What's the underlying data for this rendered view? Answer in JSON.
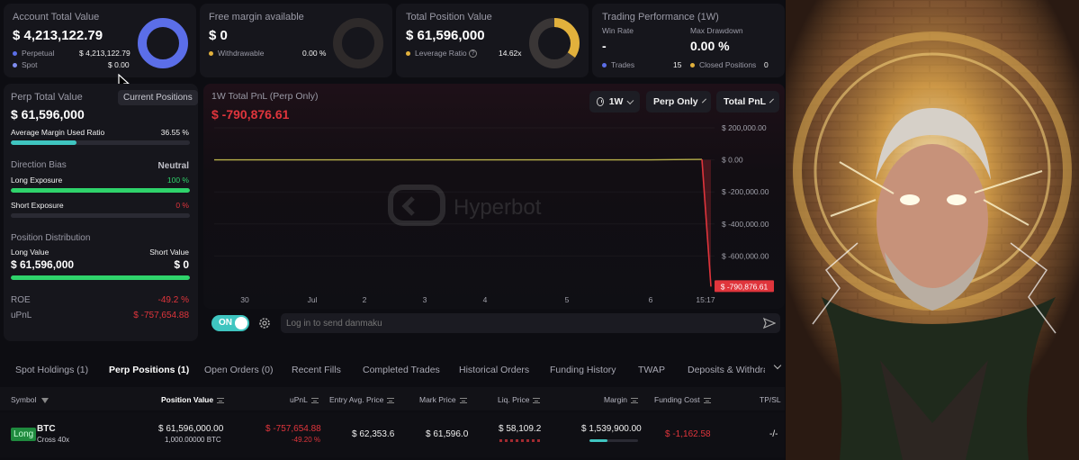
{
  "summary": {
    "account": {
      "title": "Account Total Value",
      "value": "$ 4,213,122.79",
      "rows": [
        {
          "label": "Perpetual",
          "value": "$ 4,213,122.79",
          "color": "#5b6ee8"
        },
        {
          "label": "Spot",
          "value": "$ 0.00",
          "color": "#7f8df0"
        }
      ]
    },
    "free_margin": {
      "title": "Free margin available",
      "value": "$ 0",
      "row_label": "Withdrawable",
      "row_value": "0.00 %"
    },
    "position": {
      "title": "Total Position Value",
      "value": "$ 61,596,000",
      "row_label": "Leverage Ratio",
      "row_value": "14.62x"
    },
    "performance": {
      "title": "Trading Performance (1W)",
      "win_rate_label": "Win Rate",
      "win_rate_value": "-",
      "max_drawdown_label": "Max Drawdown",
      "max_drawdown_value": "0.00 %",
      "trades_label": "Trades",
      "trades_value": "15",
      "closed_label": "Closed Positions",
      "closed_value": "0"
    }
  },
  "perp": {
    "title": "Perp Total Value",
    "current_positions": "Current Positions",
    "value": "$ 61,596,000",
    "margin_label": "Average Margin Used Ratio",
    "margin_value": "36.55 %",
    "margin_fraction": 0.3655,
    "direction_label": "Direction Bias",
    "direction_value": "Neutral",
    "long_label": "Long Exposure",
    "long_value": "100 %",
    "long_fraction": 1.0,
    "short_label": "Short Exposure",
    "short_value": "0 %",
    "short_fraction": 0.0,
    "distribution_label": "Position Distribution",
    "long_value_label": "Long Value",
    "short_value_label": "Short Value",
    "long_amount": "$ 61,596,000",
    "short_amount": "$ 0",
    "roe_label": "ROE",
    "roe_value": "-49.2 %",
    "upnl_label": "uPnL",
    "upnl_value": "$ -757,654.88"
  },
  "pnl_chart": {
    "title": "1W Total PnL (Perp Only)",
    "value": "$ -790,876.61",
    "filters": [
      "1W",
      "Perp Only",
      "Total PnL"
    ],
    "watermark": "Hyperbot",
    "chart_data": {
      "type": "line",
      "x_ticks": [
        "30",
        "Jul",
        "2",
        "3",
        "4",
        "5",
        "6",
        "15:17"
      ],
      "y_ticks": [
        "$ 200,000.00",
        "$ 0.00",
        "$ -200,000.00",
        "$ -400,000.00",
        "$ -600,000.00"
      ],
      "ylim": [
        -800000,
        200000
      ],
      "points": [
        {
          "x": "30",
          "y": 0
        },
        {
          "x": "Jul",
          "y": 0
        },
        {
          "x": "2",
          "y": 0
        },
        {
          "x": "3",
          "y": 0
        },
        {
          "x": "4",
          "y": 0
        },
        {
          "x": "5",
          "y": 0
        },
        {
          "x": "6",
          "y": 0
        },
        {
          "x": "15:17",
          "y": 3000
        },
        {
          "x": "15:17",
          "y": -790876.61
        }
      ],
      "last_value_label": "$ -790,876.61"
    }
  },
  "danmaku": {
    "toggle_label": "ON",
    "placeholder": "Log in to send danmaku"
  },
  "tabs": [
    "Spot Holdings (1)",
    "Perp Positions (1)",
    "Open Orders (0)",
    "Recent Fills",
    "Completed Trades",
    "Historical Orders",
    "Funding History",
    "TWAP",
    "Deposits & Withdraw"
  ],
  "table": {
    "headers": [
      "Symbol",
      "Position Value",
      "uPnL",
      "Entry Avg. Price",
      "Mark Price",
      "Liq. Price",
      "Margin",
      "Funding Cost",
      "TP/SL"
    ],
    "row": {
      "side": "Long",
      "symbol": "BTC",
      "leverage": "Cross 40x",
      "position_value": "$ 61,596,000.00",
      "position_size": "1,000.00000 BTC",
      "upnl": "$ -757,654.88",
      "upnl_pct": "-49.20 %",
      "entry": "$ 62,353.6",
      "mark": "$ 61,596.0",
      "liq": "$ 58,109.2",
      "margin": "$ 1,539,900.00",
      "margin_fraction": 0.37,
      "funding": "$ -1,162.58",
      "tpsl": "-/-"
    }
  },
  "colors": {
    "accent_teal": "#3fc5c0",
    "green": "#2fd36b",
    "red": "#e0353c",
    "donut_blue": "#5b6ee8",
    "donut_gold": "#e2b13c"
  }
}
